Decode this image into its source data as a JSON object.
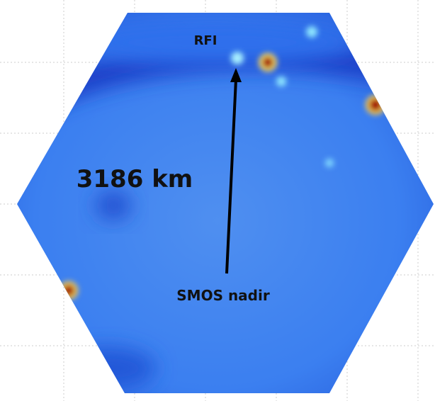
{
  "labels": {
    "rfi": "RFI",
    "distance": "3186 km",
    "nadir": "SMOS nadir"
  }
}
